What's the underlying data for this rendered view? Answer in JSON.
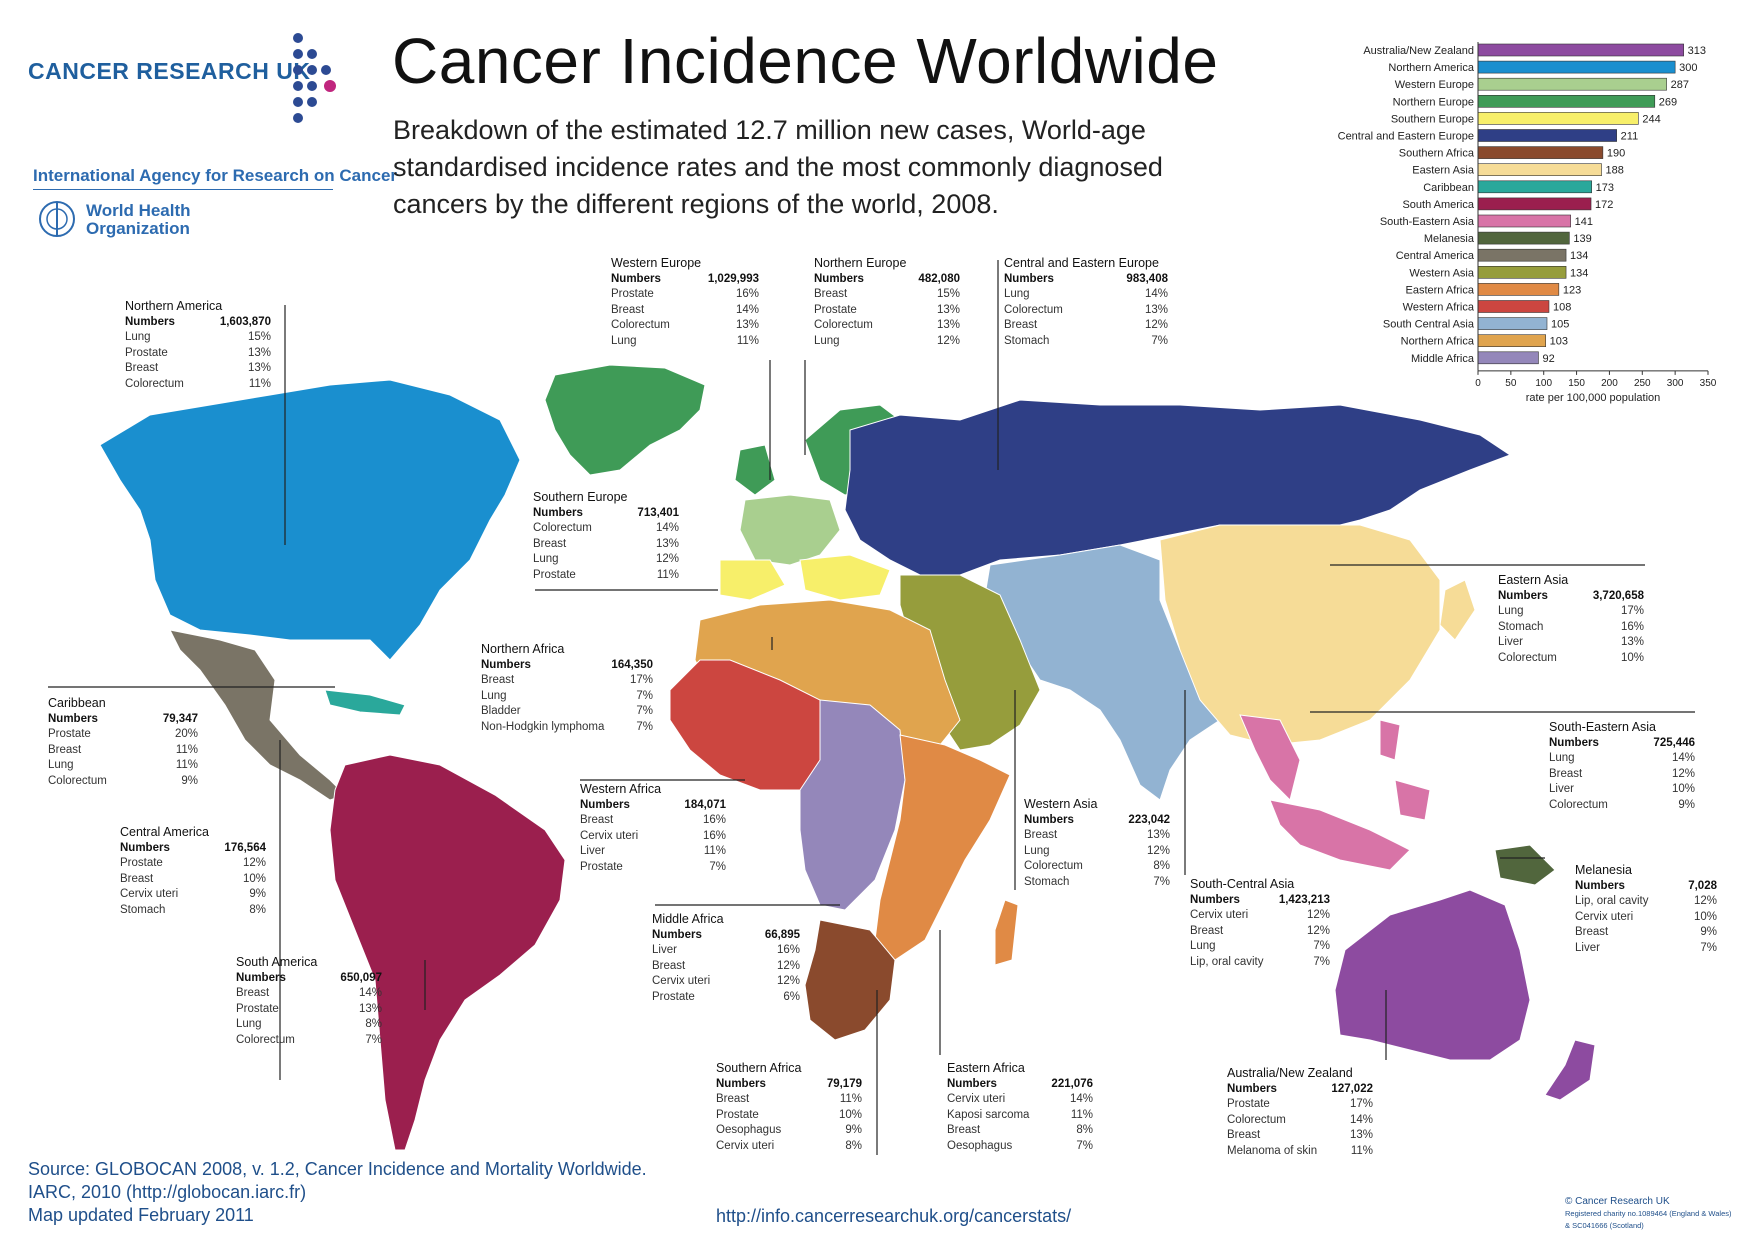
{
  "logos": {
    "cancer_research": "CANCER RESEARCH UK",
    "iarc": "International Agency for Research on Cancer",
    "who": "World Health Organization"
  },
  "title": "Cancer Incidence Worldwide",
  "subtitle": "Breakdown of the estimated 12.7 million new cases, World-age standardised incidence rates and the most commonly diagnosed cancers by the different regions of the world, 2008.",
  "colors": {
    "northern_america": "#1a8fcf",
    "caribbean": "#2aa89b",
    "central_america": "#7a7466",
    "south_america": "#9b1f4e",
    "western_europe": "#a9cf8f",
    "northern_europe": "#3f9b57",
    "southern_europe": "#f7ef6a",
    "central_eastern_europe": "#2f3f86",
    "northern_africa": "#e0a44e",
    "western_africa": "#cc4640",
    "middle_africa": "#9487ba",
    "eastern_africa": "#e08a45",
    "southern_africa": "#8a4a2d",
    "western_asia": "#969d3c",
    "south_central_asia": "#92b3d2",
    "eastern_asia": "#f6dc97",
    "south_eastern_asia": "#d874a7",
    "melanesia": "#51663d",
    "australia_nz": "#8d4ba0"
  },
  "regions": {
    "northern_america": {
      "name": "Northern America",
      "numbers": "1,603,870",
      "cancers": [
        [
          "Lung",
          "15%"
        ],
        [
          "Prostate",
          "13%"
        ],
        [
          "Breast",
          "13%"
        ],
        [
          "Colorectum",
          "11%"
        ]
      ]
    },
    "caribbean": {
      "name": "Caribbean",
      "numbers": "79,347",
      "cancers": [
        [
          "Prostate",
          "20%"
        ],
        [
          "Breast",
          "11%"
        ],
        [
          "Lung",
          "11%"
        ],
        [
          "Colorectum",
          "9%"
        ]
      ]
    },
    "central_america": {
      "name": "Central America",
      "numbers": "176,564",
      "cancers": [
        [
          "Prostate",
          "12%"
        ],
        [
          "Breast",
          "10%"
        ],
        [
          "Cervix uteri",
          "9%"
        ],
        [
          "Stomach",
          "8%"
        ]
      ]
    },
    "south_america": {
      "name": "South America",
      "numbers": "650,097",
      "cancers": [
        [
          "Breast",
          "14%"
        ],
        [
          "Prostate",
          "13%"
        ],
        [
          "Lung",
          "8%"
        ],
        [
          "Colorectum",
          "7%"
        ]
      ]
    },
    "western_europe": {
      "name": "Western Europe",
      "numbers": "1,029,993",
      "cancers": [
        [
          "Prostate",
          "16%"
        ],
        [
          "Breast",
          "14%"
        ],
        [
          "Colorectum",
          "13%"
        ],
        [
          "Lung",
          "11%"
        ]
      ]
    },
    "northern_europe": {
      "name": "Northern Europe",
      "numbers": "482,080",
      "cancers": [
        [
          "Breast",
          "15%"
        ],
        [
          "Prostate",
          "13%"
        ],
        [
          "Colorectum",
          "13%"
        ],
        [
          "Lung",
          "12%"
        ]
      ]
    },
    "central_eastern_europe": {
      "name": "Central and Eastern Europe",
      "numbers": "983,408",
      "cancers": [
        [
          "Lung",
          "14%"
        ],
        [
          "Colorectum",
          "13%"
        ],
        [
          "Breast",
          "12%"
        ],
        [
          "Stomach",
          "7%"
        ]
      ]
    },
    "southern_europe": {
      "name": "Southern Europe",
      "numbers": "713,401",
      "cancers": [
        [
          "Colorectum",
          "14%"
        ],
        [
          "Breast",
          "13%"
        ],
        [
          "Lung",
          "12%"
        ],
        [
          "Prostate",
          "11%"
        ]
      ]
    },
    "northern_africa": {
      "name": "Northern Africa",
      "numbers": "164,350",
      "cancers": [
        [
          "Breast",
          "17%"
        ],
        [
          "Lung",
          "7%"
        ],
        [
          "Bladder",
          "7%"
        ],
        [
          "Non-Hodgkin lymphoma",
          "7%"
        ]
      ]
    },
    "western_africa": {
      "name": "Western Africa",
      "numbers": "184,071",
      "cancers": [
        [
          "Breast",
          "16%"
        ],
        [
          "Cervix uteri",
          "16%"
        ],
        [
          "Liver",
          "11%"
        ],
        [
          "Prostate",
          "7%"
        ]
      ]
    },
    "middle_africa": {
      "name": "Middle Africa",
      "numbers": "66,895",
      "cancers": [
        [
          "Liver",
          "16%"
        ],
        [
          "Breast",
          "12%"
        ],
        [
          "Cervix uteri",
          "12%"
        ],
        [
          "Prostate",
          "6%"
        ]
      ]
    },
    "southern_africa": {
      "name": "Southern Africa",
      "numbers": "79,179",
      "cancers": [
        [
          "Breast",
          "11%"
        ],
        [
          "Prostate",
          "10%"
        ],
        [
          "Oesophagus",
          "9%"
        ],
        [
          "Cervix uteri",
          "8%"
        ]
      ]
    },
    "eastern_africa": {
      "name": "Eastern Africa",
      "numbers": "221,076",
      "cancers": [
        [
          "Cervix uteri",
          "14%"
        ],
        [
          "Kaposi sarcoma",
          "11%"
        ],
        [
          "Breast",
          "8%"
        ],
        [
          "Oesophagus",
          "7%"
        ]
      ]
    },
    "western_asia": {
      "name": "Western Asia",
      "numbers": "223,042",
      "cancers": [
        [
          "Breast",
          "13%"
        ],
        [
          "Lung",
          "12%"
        ],
        [
          "Colorectum",
          "8%"
        ],
        [
          "Stomach",
          "7%"
        ]
      ]
    },
    "south_central_asia": {
      "name": "South-Central Asia",
      "numbers": "1,423,213",
      "cancers": [
        [
          "Cervix uteri",
          "12%"
        ],
        [
          "Breast",
          "12%"
        ],
        [
          "Lung",
          "7%"
        ],
        [
          "Lip, oral cavity",
          "7%"
        ]
      ]
    },
    "eastern_asia": {
      "name": "Eastern Asia",
      "numbers": "3,720,658",
      "cancers": [
        [
          "Lung",
          "17%"
        ],
        [
          "Stomach",
          "16%"
        ],
        [
          "Liver",
          "13%"
        ],
        [
          "Colorectum",
          "10%"
        ]
      ]
    },
    "south_eastern_asia": {
      "name": "South-Eastern Asia",
      "numbers": "725,446",
      "cancers": [
        [
          "Lung",
          "14%"
        ],
        [
          "Breast",
          "12%"
        ],
        [
          "Liver",
          "10%"
        ],
        [
          "Colorectum",
          "9%"
        ]
      ]
    },
    "melanesia": {
      "name": "Melanesia",
      "numbers": "7,028",
      "cancers": [
        [
          "Lip, oral cavity",
          "12%"
        ],
        [
          "Cervix uteri",
          "10%"
        ],
        [
          "Breast",
          "9%"
        ],
        [
          "Liver",
          "7%"
        ]
      ]
    },
    "australia_nz": {
      "name": "Australia/New Zealand",
      "numbers": "127,022",
      "cancers": [
        [
          "Prostate",
          "17%"
        ],
        [
          "Colorectum",
          "14%"
        ],
        [
          "Breast",
          "13%"
        ],
        [
          "Melanoma of skin",
          "11%"
        ]
      ]
    }
  },
  "numbers_label": "Numbers",
  "chart_data": {
    "type": "bar",
    "orientation": "horizontal",
    "categories": [
      "Australia/New Zealand",
      "Northern America",
      "Western Europe",
      "Northern Europe",
      "Southern Europe",
      "Central and Eastern Europe",
      "Southern Africa",
      "Eastern Asia",
      "Caribbean",
      "South America",
      "South-Eastern Asia",
      "Melanesia",
      "Central America",
      "Western Asia",
      "Eastern Africa",
      "Western Africa",
      "South Central Asia",
      "Northern Africa",
      "Middle Africa"
    ],
    "values": [
      313,
      300,
      287,
      269,
      244,
      211,
      190,
      188,
      173,
      172,
      141,
      139,
      134,
      134,
      123,
      108,
      105,
      103,
      92
    ],
    "value_labels": [
      "313",
      "300",
      "287",
      "269",
      "244",
      "211",
      "190",
      "188",
      "173",
      "172",
      "141",
      "139",
      "134",
      "134",
      "123",
      "108",
      "105",
      "103",
      "92"
    ],
    "colors": [
      "#8d4ba0",
      "#1a8fcf",
      "#a9cf8f",
      "#3f9b57",
      "#f7ef6a",
      "#2f3f86",
      "#8a4a2d",
      "#f6dc97",
      "#2aa89b",
      "#9b1f4e",
      "#d874a7",
      "#51663d",
      "#7a7466",
      "#969d3c",
      "#e08a45",
      "#cc4640",
      "#92b3d2",
      "#e0a44e",
      "#9487ba"
    ],
    "xlim": [
      0,
      350
    ],
    "xticks": [
      "0",
      "50",
      "100",
      "150",
      "200",
      "250",
      "300",
      "350"
    ],
    "xlabel": "rate per 100,000 population"
  },
  "footer": {
    "source_1": "Source: GLOBOCAN 2008, v. 1.2, Cancer Incidence and Mortality Worldwide.",
    "source_2": "IARC, 2010 (http://globocan.iarc.fr)",
    "source_3": "Map updated February 2011",
    "url": "http://info.cancerresearchuk.org/cancerstats/",
    "copyright": "© Cancer Research UK",
    "charity_1": "Registered charity no.1089464 (England & Wales)",
    "charity_2": "& SC041666 (Scotland)"
  }
}
